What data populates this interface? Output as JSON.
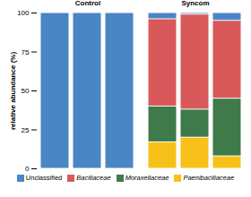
{
  "chart_data": {
    "type": "bar",
    "stacked": true,
    "y_label": "relative abundance (%)",
    "categories": [
      null,
      null,
      null,
      null,
      null,
      null
    ],
    "facets": [
      "Control",
      "Control",
      "Control",
      "Syncom",
      "Syncom",
      "Syncom"
    ],
    "series": [
      {
        "name": "Unclassified",
        "color": "#4a86c4",
        "values": [
          100,
          100,
          100,
          4,
          1,
          5
        ]
      },
      {
        "name": "Bacillaceae",
        "color": "#d9595a",
        "values": [
          0,
          0,
          0,
          56,
          61,
          50
        ]
      },
      {
        "name": "Moraxellaceae",
        "color": "#3e7a4a",
        "values": [
          0,
          0,
          0,
          23,
          18,
          37
        ]
      },
      {
        "name": "Paenibacillaceae",
        "color": "#f7c11a",
        "values": [
          0,
          0,
          0,
          17,
          20,
          8
        ]
      }
    ],
    "ylim": [
      0,
      100
    ],
    "yticks": [
      0,
      25,
      50,
      75,
      100
    ],
    "grid": false,
    "legend": "bottom"
  }
}
